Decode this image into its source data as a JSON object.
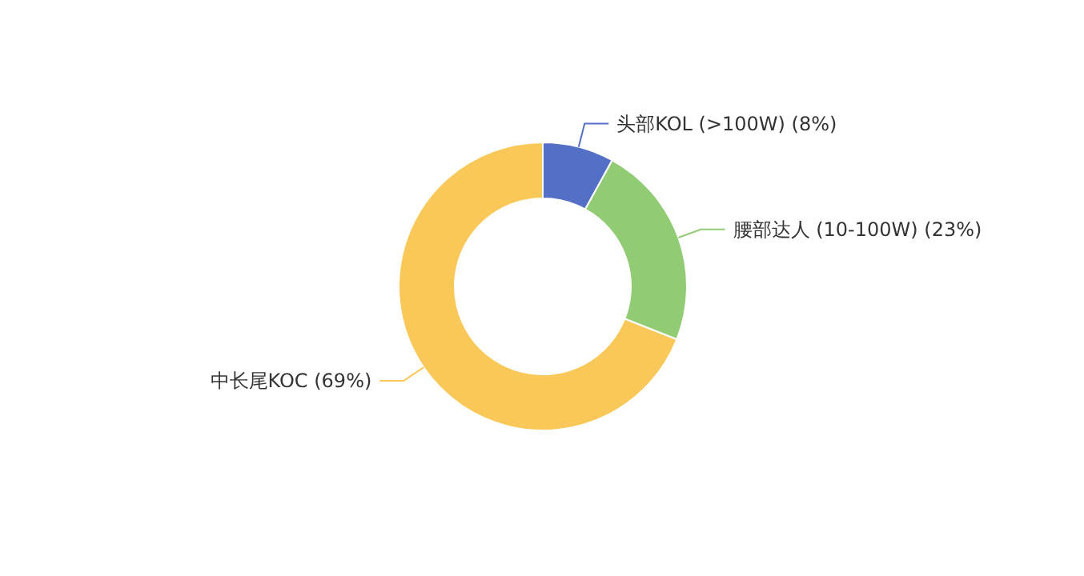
{
  "chart_data": {
    "type": "donut",
    "categories": [
      "头部KOL (>100W)",
      "腰部达人 (10-100W)",
      "中长尾KOC"
    ],
    "values": [
      8,
      23,
      69
    ],
    "value_labels": [
      "(8%)",
      "(23%)",
      "(69%)"
    ],
    "colors": [
      "#5470c6",
      "#91cc75",
      "#fac858"
    ]
  }
}
